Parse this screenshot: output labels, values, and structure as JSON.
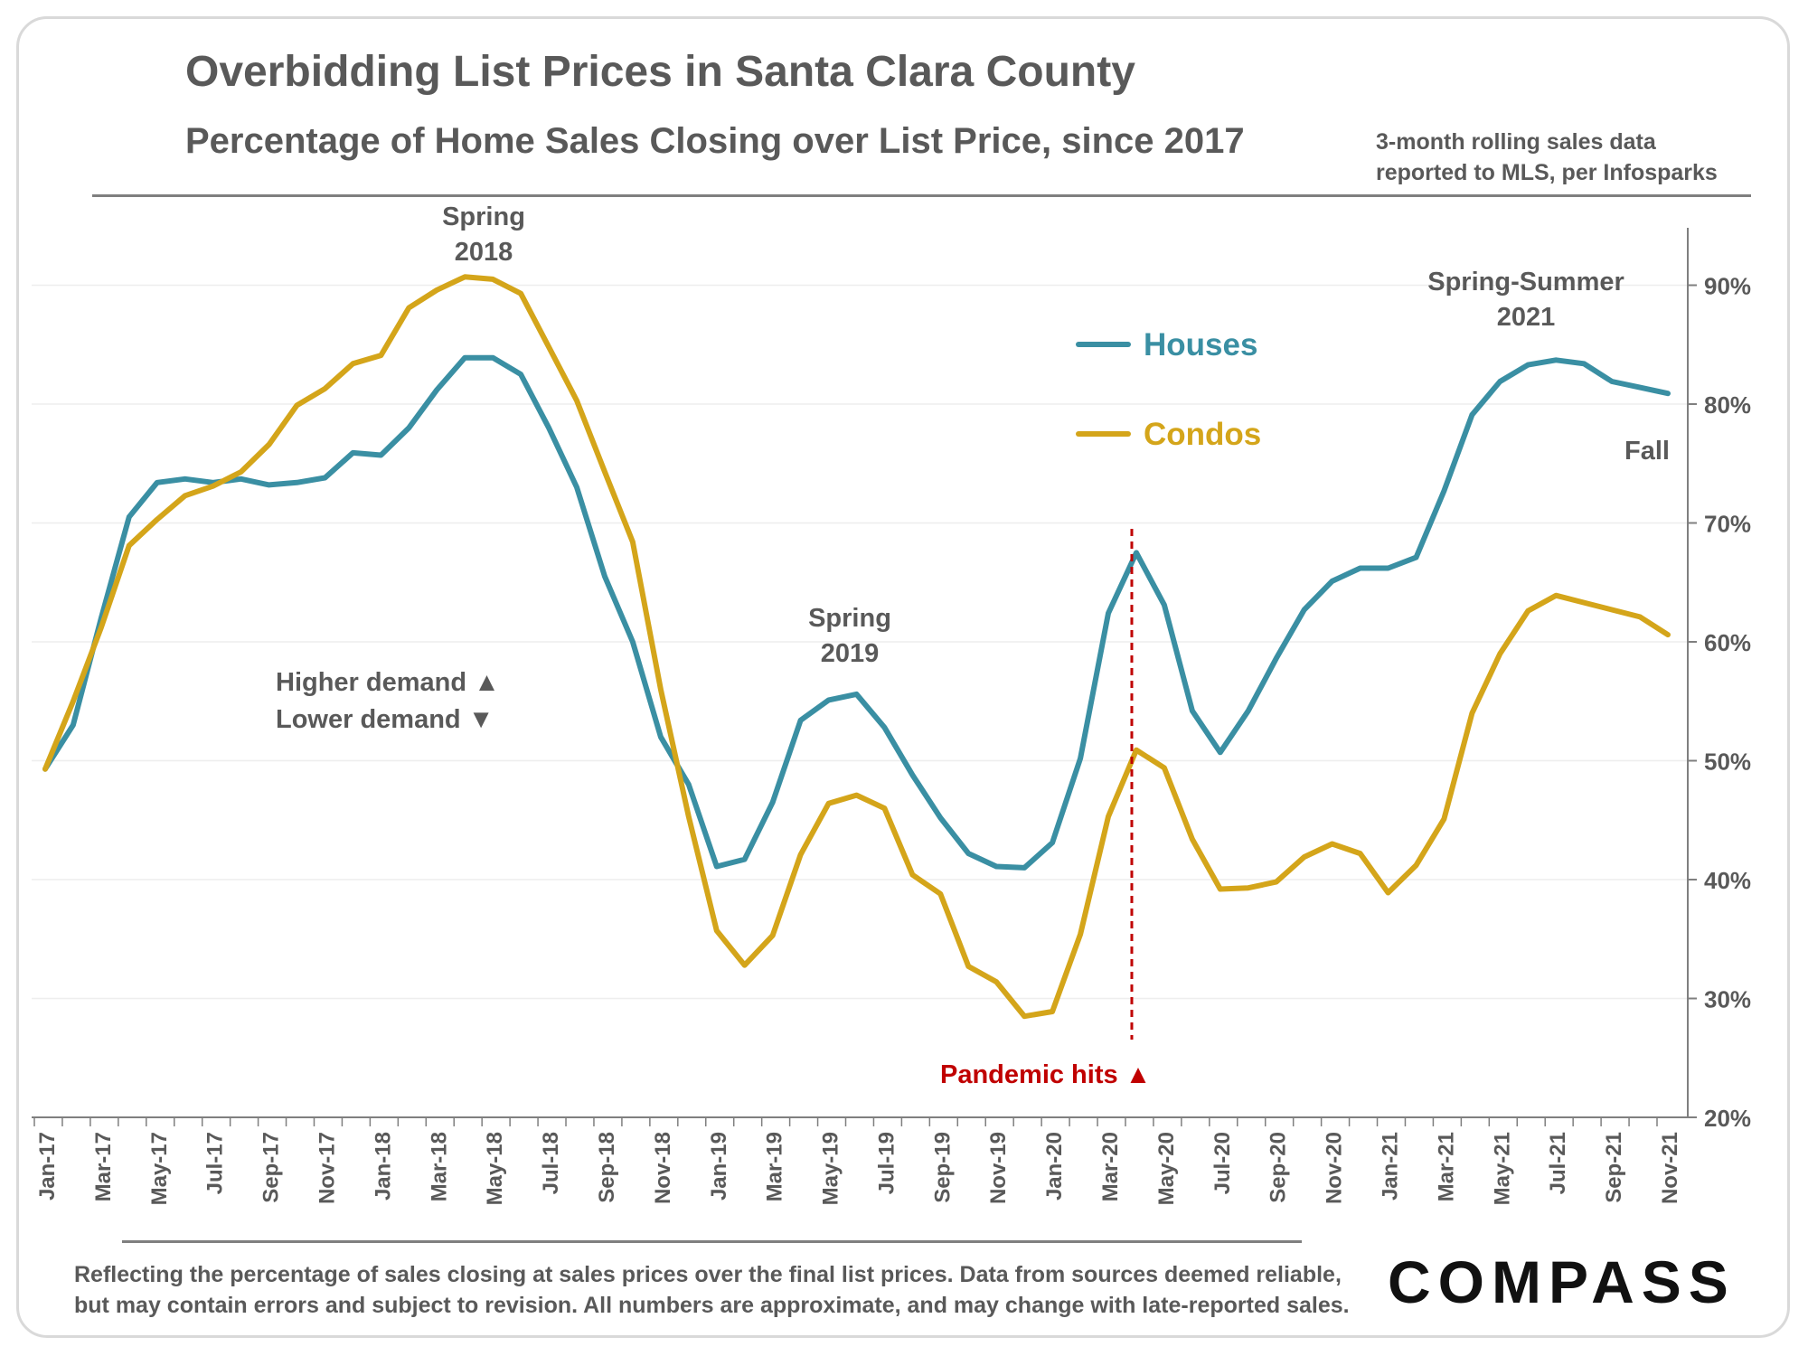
{
  "title": "Overbidding List Prices in Santa Clara County",
  "subtitle": "Percentage of  Home Sales Closing over List Price, since 2017",
  "note_line1": "3-month rolling sales data",
  "note_line2": "reported to MLS, per Infosparks",
  "footnote_line1": "Reflecting the percentage of sales closing at sales prices over the final list prices. Data from sources deemed reliable,",
  "footnote_line2": "but may contain errors and subject to revision. All numbers are approximate, and may change with late-reported sales.",
  "logo_text": "COMPASS",
  "colors": {
    "houses": "#3A8FA3",
    "condos": "#D4A51A",
    "pandemic": "#C00000",
    "text": "#595959",
    "grid": "#eeeeee"
  },
  "annotations": {
    "spring2018": [
      "Spring",
      "2018"
    ],
    "spring2019": [
      "Spring",
      "2019"
    ],
    "springsummer2021": [
      "Spring-Summer",
      "2021"
    ],
    "fall": "Fall",
    "higher_demand": "Higher demand ▲",
    "lower_demand": "Lower demand  ▼",
    "pandemic": "Pandemic hits ▲"
  },
  "chart_data": {
    "type": "line",
    "title": "Overbidding List Prices in Santa Clara County",
    "subtitle": "Percentage of  Home Sales Closing over List Price, since 2017",
    "ylim": [
      20,
      95
    ],
    "y_axis_position": "right",
    "y_ticks": [
      "20%",
      "30%",
      "40%",
      "50%",
      "60%",
      "70%",
      "80%",
      "90%"
    ],
    "x_tick_labels": [
      "Jan-17",
      "Mar-17",
      "May-17",
      "Jul-17",
      "Sep-17",
      "Nov-17",
      "Jan-18",
      "Mar-18",
      "May-18",
      "Jul-18",
      "Sep-18",
      "Nov-18",
      "Jan-19",
      "Mar-19",
      "May-19",
      "Jul-19",
      "Sep-19",
      "Nov-19",
      "Jan-20",
      "Mar-20",
      "May-20",
      "Jul-20",
      "Sep-20",
      "Nov-20",
      "Jan-21",
      "Mar-21",
      "May-21",
      "Jul-21",
      "Sep-21",
      "Nov-21"
    ],
    "x": [
      "Jan-17",
      "Feb-17",
      "Mar-17",
      "Apr-17",
      "May-17",
      "Jun-17",
      "Jul-17",
      "Aug-17",
      "Sep-17",
      "Oct-17",
      "Nov-17",
      "Dec-17",
      "Jan-18",
      "Feb-18",
      "Mar-18",
      "Apr-18",
      "May-18",
      "Jun-18",
      "Jul-18",
      "Aug-18",
      "Sep-18",
      "Oct-18",
      "Nov-18",
      "Dec-18",
      "Jan-19",
      "Feb-19",
      "Mar-19",
      "Apr-19",
      "May-19",
      "Jun-19",
      "Jul-19",
      "Aug-19",
      "Sep-19",
      "Oct-19",
      "Nov-19",
      "Dec-19",
      "Jan-20",
      "Feb-20",
      "Mar-20",
      "Apr-20",
      "May-20",
      "Jun-20",
      "Jul-20",
      "Aug-20",
      "Sep-20",
      "Oct-20",
      "Nov-20",
      "Dec-20",
      "Jan-21",
      "Feb-21",
      "Mar-21",
      "Apr-21",
      "May-21",
      "Jun-21",
      "Jul-21",
      "Aug-21",
      "Sep-21",
      "Oct-21",
      "Nov-21"
    ],
    "series": [
      {
        "name": "Houses",
        "values": [
          49.3,
          53,
          62,
          70.5,
          73.4,
          73.7,
          73.4,
          73.7,
          73.2,
          73.4,
          73.8,
          75.9,
          75.7,
          78,
          81.2,
          83.9,
          83.9,
          82.5,
          78,
          73,
          65.5,
          60,
          52,
          48,
          41.1,
          41.7,
          46.5,
          53.4,
          55.1,
          55.6,
          52.8,
          48.8,
          45.2,
          42.2,
          41.1,
          41,
          43.1,
          50.2,
          62.4,
          67.5,
          63.1,
          54.2,
          50.7,
          54.2,
          58.6,
          62.7,
          65.1,
          66.2,
          66.2,
          67.1,
          72.7,
          79.1,
          81.9,
          83.3,
          83.7,
          83.4,
          81.9,
          81.4,
          80.9
        ]
      },
      {
        "name": "Condos",
        "values": [
          49.3,
          55,
          61.2,
          68.1,
          70.3,
          72.3,
          73.1,
          74.3,
          76.6,
          79.9,
          81.3,
          83.4,
          84.1,
          88.1,
          89.6,
          90.7,
          90.5,
          89.3,
          84.8,
          80.3,
          74.3,
          68.4,
          56,
          45.3,
          35.7,
          32.8,
          35.3,
          42.1,
          46.4,
          47.1,
          46,
          40.4,
          38.8,
          32.7,
          31.4,
          28.5,
          28.9,
          35.4,
          45.3,
          50.9,
          49.4,
          43.4,
          39.2,
          39.3,
          39.8,
          41.9,
          43,
          42.2,
          38.9,
          41.2,
          45.1,
          54,
          59,
          62.6,
          63.9,
          63.3,
          62.7,
          62.1,
          60.6
        ]
      }
    ],
    "pandemic_marker_x": "Apr-20",
    "legend_position": "center-right"
  }
}
